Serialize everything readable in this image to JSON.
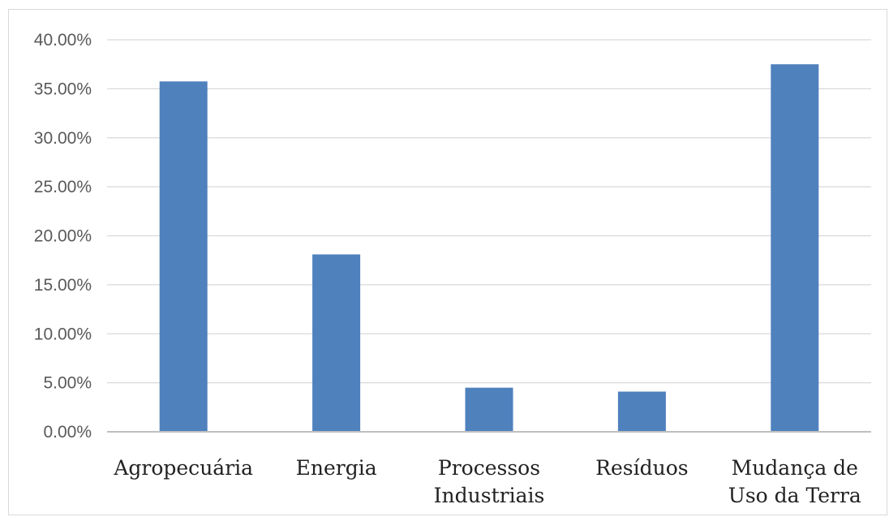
{
  "chart_data": {
    "type": "bar",
    "categories": [
      [
        "Agropecuária"
      ],
      [
        "Energia"
      ],
      [
        "Processos",
        "Industriais"
      ],
      [
        "Resíduos"
      ],
      [
        "Mudança de",
        "Uso da Terra"
      ]
    ],
    "values": [
      35.75,
      18.1,
      4.5,
      4.1,
      37.5
    ],
    "ylim": [
      0,
      40
    ],
    "yticks": [
      "0.00%",
      "5.00%",
      "10.00%",
      "15.00%",
      "20.00%",
      "25.00%",
      "30.00%",
      "35.00%",
      "40.00%"
    ],
    "grid": true,
    "legend": "none",
    "colors": {
      "bar": "#4f81bd",
      "grid": "#d9d9d9",
      "axis": "#bfbfbf"
    }
  }
}
